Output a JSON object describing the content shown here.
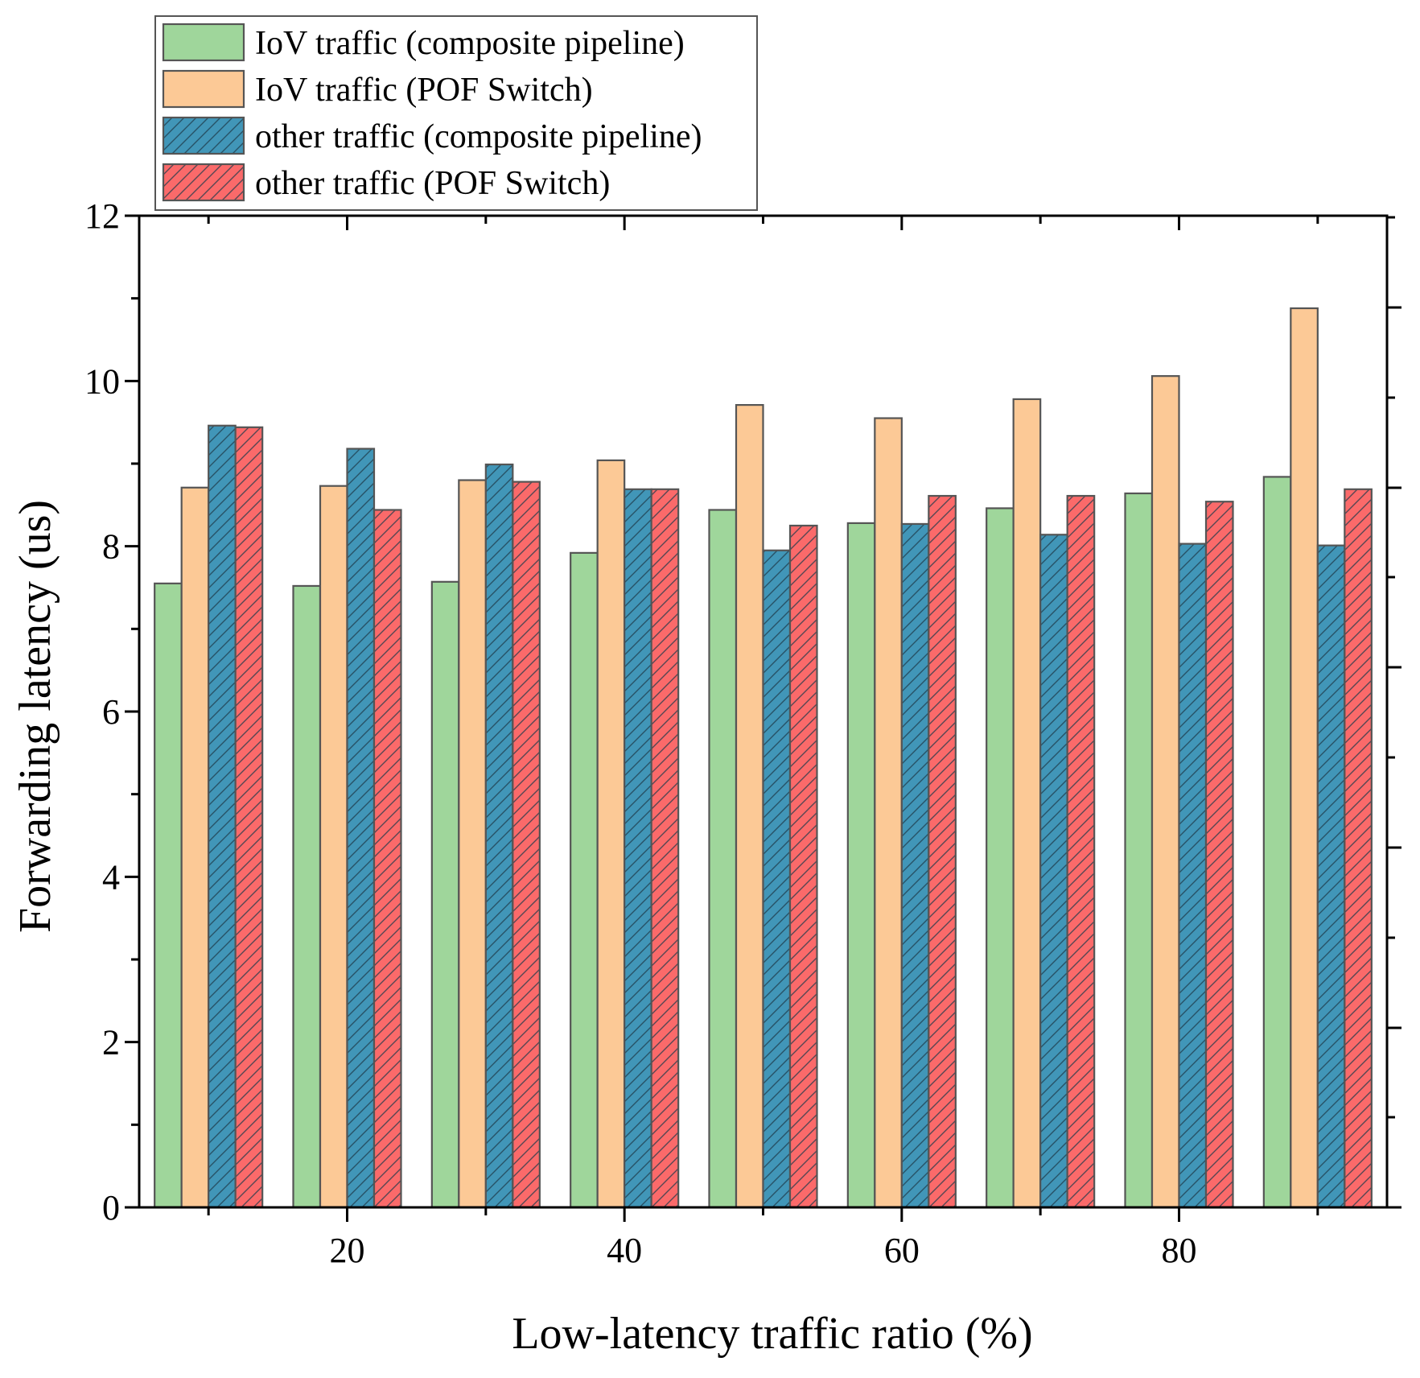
{
  "chart_data": {
    "type": "bar",
    "title": "",
    "xlabel": "Low-latency traffic ratio (%)",
    "ylabel": "Forwarding latency (us)",
    "ylim": [
      0,
      12
    ],
    "yticks": [
      0,
      2,
      4,
      6,
      8,
      10,
      12
    ],
    "xlim": [
      5,
      95
    ],
    "xticks": [
      20,
      40,
      60,
      80
    ],
    "categories": [
      10,
      20,
      30,
      40,
      50,
      60,
      70,
      80,
      90
    ],
    "grid": false,
    "legend_position": "top-left",
    "series": [
      {
        "name": "IoV traffic (composite pipeline)",
        "color": "#9fd69b",
        "hatch": false,
        "values": [
          7.55,
          7.52,
          7.57,
          7.92,
          8.44,
          8.28,
          8.46,
          8.64,
          8.84
        ]
      },
      {
        "name": "IoV traffic (POF Switch)",
        "color": "#fcc996",
        "hatch": false,
        "values": [
          8.71,
          8.73,
          8.8,
          9.04,
          9.71,
          9.55,
          9.78,
          10.06,
          10.88
        ]
      },
      {
        "name": "other traffic (composite pipeline)",
        "color": "#4196b8",
        "hatch": true,
        "values": [
          9.46,
          9.18,
          8.99,
          8.69,
          7.95,
          8.27,
          8.14,
          8.03,
          8.01
        ]
      },
      {
        "name": "other traffic (POF Switch)",
        "color": "#fb6a6a",
        "hatch": true,
        "values": [
          9.44,
          8.44,
          8.78,
          8.69,
          8.25,
          8.61,
          8.61,
          8.54,
          8.69
        ]
      }
    ]
  }
}
